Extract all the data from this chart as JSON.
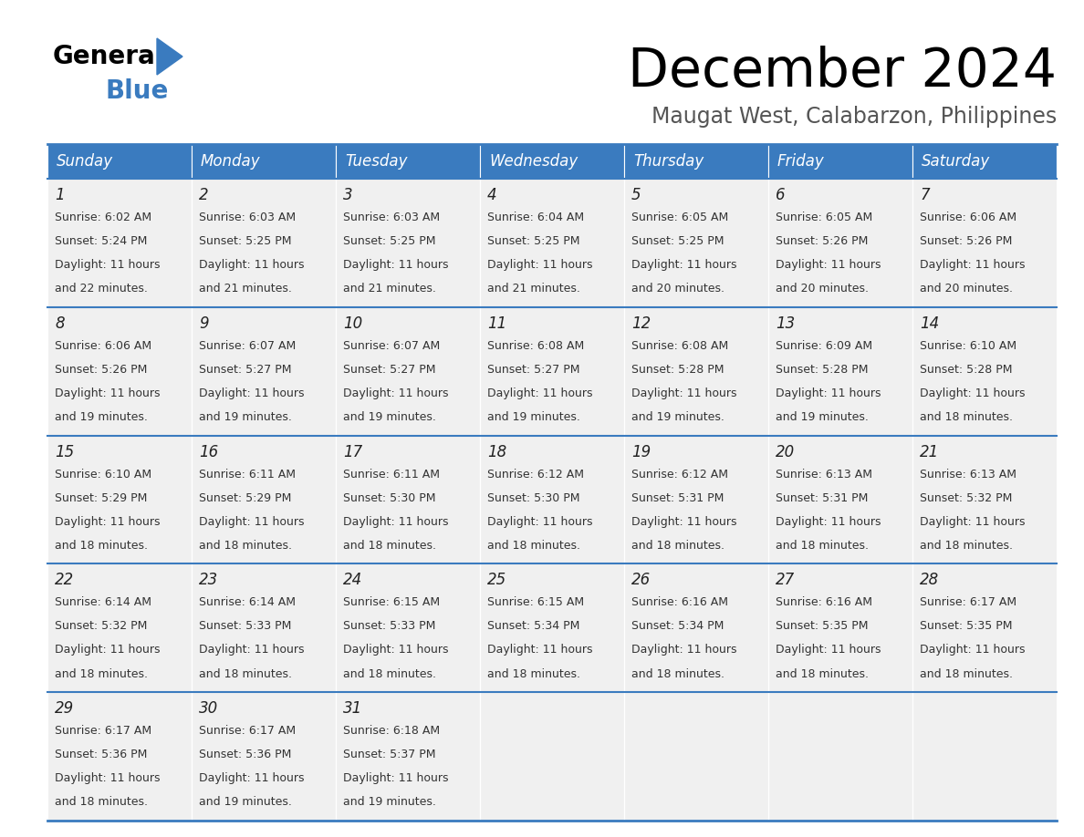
{
  "title": "December 2024",
  "subtitle": "Maugat West, Calabarzon, Philippines",
  "header_bg_color": "#3a7bbf",
  "header_text_color": "#ffffff",
  "cell_bg_color": "#f0f0f0",
  "border_color": "#3a7bbf",
  "text_color": "#333333",
  "day_names": [
    "Sunday",
    "Monday",
    "Tuesday",
    "Wednesday",
    "Thursday",
    "Friday",
    "Saturday"
  ],
  "weeks": [
    [
      {
        "day": 1,
        "sunrise": "6:02 AM",
        "sunset": "5:24 PM",
        "daylight_min": "22"
      },
      {
        "day": 2,
        "sunrise": "6:03 AM",
        "sunset": "5:25 PM",
        "daylight_min": "21"
      },
      {
        "day": 3,
        "sunrise": "6:03 AM",
        "sunset": "5:25 PM",
        "daylight_min": "21"
      },
      {
        "day": 4,
        "sunrise": "6:04 AM",
        "sunset": "5:25 PM",
        "daylight_min": "21"
      },
      {
        "day": 5,
        "sunrise": "6:05 AM",
        "sunset": "5:25 PM",
        "daylight_min": "20"
      },
      {
        "day": 6,
        "sunrise": "6:05 AM",
        "sunset": "5:26 PM",
        "daylight_min": "20"
      },
      {
        "day": 7,
        "sunrise": "6:06 AM",
        "sunset": "5:26 PM",
        "daylight_min": "20"
      }
    ],
    [
      {
        "day": 8,
        "sunrise": "6:06 AM",
        "sunset": "5:26 PM",
        "daylight_min": "19"
      },
      {
        "day": 9,
        "sunrise": "6:07 AM",
        "sunset": "5:27 PM",
        "daylight_min": "19"
      },
      {
        "day": 10,
        "sunrise": "6:07 AM",
        "sunset": "5:27 PM",
        "daylight_min": "19"
      },
      {
        "day": 11,
        "sunrise": "6:08 AM",
        "sunset": "5:27 PM",
        "daylight_min": "19"
      },
      {
        "day": 12,
        "sunrise": "6:08 AM",
        "sunset": "5:28 PM",
        "daylight_min": "19"
      },
      {
        "day": 13,
        "sunrise": "6:09 AM",
        "sunset": "5:28 PM",
        "daylight_min": "19"
      },
      {
        "day": 14,
        "sunrise": "6:10 AM",
        "sunset": "5:28 PM",
        "daylight_min": "18"
      }
    ],
    [
      {
        "day": 15,
        "sunrise": "6:10 AM",
        "sunset": "5:29 PM",
        "daylight_min": "18"
      },
      {
        "day": 16,
        "sunrise": "6:11 AM",
        "sunset": "5:29 PM",
        "daylight_min": "18"
      },
      {
        "day": 17,
        "sunrise": "6:11 AM",
        "sunset": "5:30 PM",
        "daylight_min": "18"
      },
      {
        "day": 18,
        "sunrise": "6:12 AM",
        "sunset": "5:30 PM",
        "daylight_min": "18"
      },
      {
        "day": 19,
        "sunrise": "6:12 AM",
        "sunset": "5:31 PM",
        "daylight_min": "18"
      },
      {
        "day": 20,
        "sunrise": "6:13 AM",
        "sunset": "5:31 PM",
        "daylight_min": "18"
      },
      {
        "day": 21,
        "sunrise": "6:13 AM",
        "sunset": "5:32 PM",
        "daylight_min": "18"
      }
    ],
    [
      {
        "day": 22,
        "sunrise": "6:14 AM",
        "sunset": "5:32 PM",
        "daylight_min": "18"
      },
      {
        "day": 23,
        "sunrise": "6:14 AM",
        "sunset": "5:33 PM",
        "daylight_min": "18"
      },
      {
        "day": 24,
        "sunrise": "6:15 AM",
        "sunset": "5:33 PM",
        "daylight_min": "18"
      },
      {
        "day": 25,
        "sunrise": "6:15 AM",
        "sunset": "5:34 PM",
        "daylight_min": "18"
      },
      {
        "day": 26,
        "sunrise": "6:16 AM",
        "sunset": "5:34 PM",
        "daylight_min": "18"
      },
      {
        "day": 27,
        "sunrise": "6:16 AM",
        "sunset": "5:35 PM",
        "daylight_min": "18"
      },
      {
        "day": 28,
        "sunrise": "6:17 AM",
        "sunset": "5:35 PM",
        "daylight_min": "18"
      }
    ],
    [
      {
        "day": 29,
        "sunrise": "6:17 AM",
        "sunset": "5:36 PM",
        "daylight_min": "18"
      },
      {
        "day": 30,
        "sunrise": "6:17 AM",
        "sunset": "5:36 PM",
        "daylight_min": "19"
      },
      {
        "day": 31,
        "sunrise": "6:18 AM",
        "sunset": "5:37 PM",
        "daylight_min": "19"
      },
      null,
      null,
      null,
      null
    ]
  ]
}
